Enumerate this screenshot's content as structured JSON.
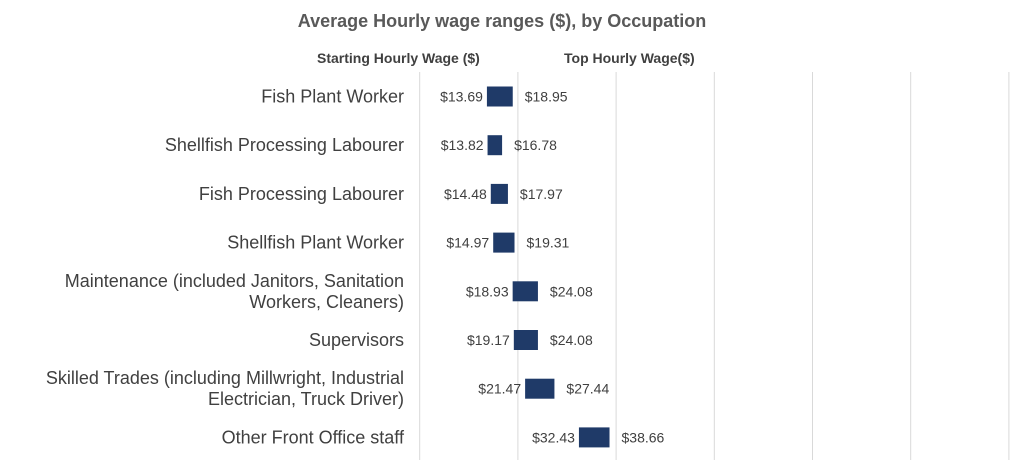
{
  "chart_data": {
    "type": "bar",
    "title": "Average Hourly wage ranges ($), by Occupation",
    "column_headers": {
      "start": "Starting Hourly Wage ($)",
      "top": "Top Hourly Wage($)"
    },
    "categories": [
      "Fish Plant Worker",
      "Shellfish Processing Labourer",
      "Fish Processing Labourer",
      "Shellfish Plant Worker",
      "Maintenance (included Janitors, Sanitation Workers, Cleaners)",
      "Supervisors",
      "Skilled Trades (including Millwright, Industrial Electrician, Truck Driver)",
      "Other Front Office staff"
    ],
    "category_lines": [
      [
        "Fish Plant Worker"
      ],
      [
        "Shellfish Processing Labourer"
      ],
      [
        "Fish Processing Labourer"
      ],
      [
        "Shellfish Plant Worker"
      ],
      [
        "Maintenance (included Janitors, Sanitation",
        "Workers, Cleaners)"
      ],
      [
        "Supervisors"
      ],
      [
        "Skilled Trades (including Millwright, Industrial",
        "Electrician, Truck Driver)"
      ],
      [
        "Other Front Office staff"
      ]
    ],
    "series": [
      {
        "name": "Starting Hourly Wage ($)",
        "values": [
          13.69,
          13.82,
          14.48,
          14.97,
          18.93,
          19.17,
          21.47,
          32.43
        ]
      },
      {
        "name": "Top Hourly Wage($)",
        "values": [
          18.95,
          16.78,
          17.97,
          19.31,
          24.08,
          24.08,
          27.44,
          38.66
        ]
      }
    ],
    "start_labels": [
      "$13.69",
      "$13.82",
      "$14.48",
      "$14.97",
      "$18.93",
      "$19.17",
      "$21.47",
      "$32.43"
    ],
    "top_labels": [
      "$18.95",
      "$16.78",
      "$17.97",
      "$19.31",
      "$24.08",
      "$24.08",
      "$27.44",
      "$38.66"
    ],
    "orientation": "horizontal",
    "bar_color": "#1f3a68",
    "grid": true,
    "legend": "none"
  }
}
